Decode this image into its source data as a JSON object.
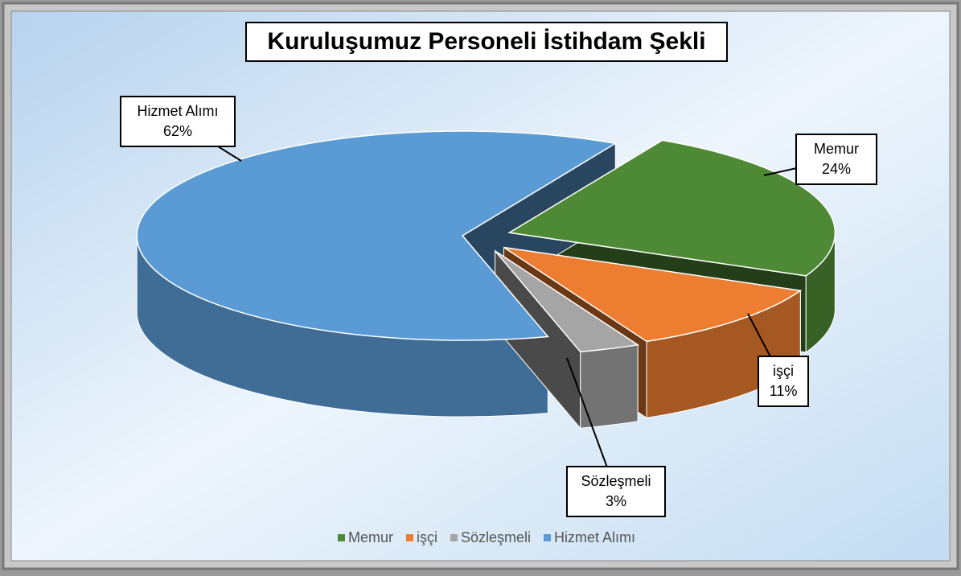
{
  "chart_data": {
    "type": "pie",
    "title": "Kuruluşumuz Personeli İstihdam Şekli",
    "categories": [
      "Memur",
      "işçi",
      "Sözleşmeli",
      "Hizmet Alımı"
    ],
    "values": [
      24,
      11,
      3,
      62
    ],
    "value_labels": [
      "24%",
      "11%",
      "3%",
      "62%"
    ],
    "colors": [
      "#4e8a35",
      "#ed7d31",
      "#a5a5a5",
      "#5b9bd5"
    ],
    "legend": "bottom"
  }
}
